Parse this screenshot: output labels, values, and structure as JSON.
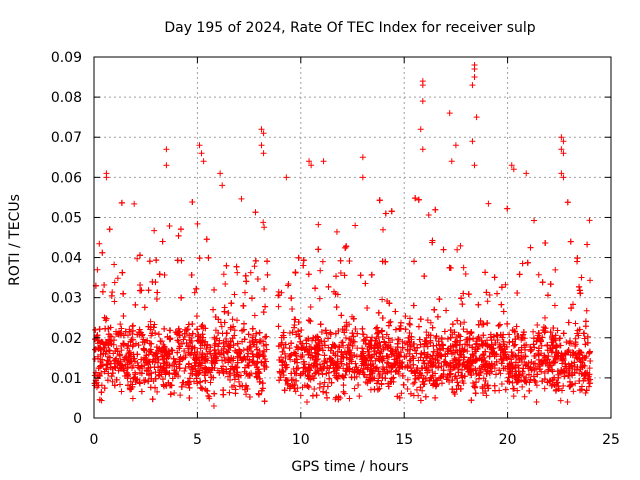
{
  "chart_data": {
    "type": "scatter",
    "title": "Day 195 of 2024, Rate Of TEC Index for receiver sulp",
    "xlabel": "GPS time / hours",
    "ylabel": "ROTI / TECUs",
    "xlim": [
      0,
      25
    ],
    "ylim": [
      0,
      0.09
    ],
    "x_ticks": [
      0,
      5,
      10,
      15,
      20,
      25
    ],
    "x_tick_labels": [
      "0",
      "5",
      "10",
      "15",
      "20",
      "25"
    ],
    "y_ticks": [
      0,
      0.01,
      0.02,
      0.03,
      0.04,
      0.05,
      0.06,
      0.07,
      0.08,
      0.09
    ],
    "y_tick_labels": [
      "0",
      "0.01",
      "0.02",
      "0.03",
      "0.04",
      "0.05",
      "0.06",
      "0.07",
      "0.08",
      "0.09"
    ],
    "grid": true,
    "marker": "+",
    "color": "#ff0000",
    "series": [
      {
        "name": "ROTI",
        "data_gaps_hours": [
          [
            8.4,
            8.9
          ]
        ],
        "notable_points": [
          {
            "x": 0.6,
            "y": 0.061
          },
          {
            "x": 0.6,
            "y": 0.06
          },
          {
            "x": 3.5,
            "y": 0.067
          },
          {
            "x": 3.5,
            "y": 0.063
          },
          {
            "x": 5.1,
            "y": 0.068
          },
          {
            "x": 5.2,
            "y": 0.066
          },
          {
            "x": 5.3,
            "y": 0.064
          },
          {
            "x": 6.1,
            "y": 0.061
          },
          {
            "x": 6.2,
            "y": 0.058
          },
          {
            "x": 8.1,
            "y": 0.072
          },
          {
            "x": 8.2,
            "y": 0.071
          },
          {
            "x": 8.1,
            "y": 0.068
          },
          {
            "x": 8.2,
            "y": 0.066
          },
          {
            "x": 9.3,
            "y": 0.06
          },
          {
            "x": 10.4,
            "y": 0.064
          },
          {
            "x": 10.5,
            "y": 0.063
          },
          {
            "x": 11.1,
            "y": 0.064
          },
          {
            "x": 13.0,
            "y": 0.065
          },
          {
            "x": 13.0,
            "y": 0.06
          },
          {
            "x": 15.9,
            "y": 0.084
          },
          {
            "x": 15.9,
            "y": 0.083
          },
          {
            "x": 15.9,
            "y": 0.079
          },
          {
            "x": 15.8,
            "y": 0.072
          },
          {
            "x": 15.9,
            "y": 0.067
          },
          {
            "x": 17.2,
            "y": 0.076
          },
          {
            "x": 17.5,
            "y": 0.068
          },
          {
            "x": 17.3,
            "y": 0.064
          },
          {
            "x": 18.4,
            "y": 0.088
          },
          {
            "x": 18.4,
            "y": 0.087
          },
          {
            "x": 18.4,
            "y": 0.085
          },
          {
            "x": 18.3,
            "y": 0.083
          },
          {
            "x": 18.5,
            "y": 0.075
          },
          {
            "x": 18.3,
            "y": 0.069
          },
          {
            "x": 18.4,
            "y": 0.063
          },
          {
            "x": 20.2,
            "y": 0.063
          },
          {
            "x": 20.3,
            "y": 0.062
          },
          {
            "x": 20.9,
            "y": 0.061
          },
          {
            "x": 22.6,
            "y": 0.07
          },
          {
            "x": 22.7,
            "y": 0.069
          },
          {
            "x": 22.6,
            "y": 0.067
          },
          {
            "x": 22.7,
            "y": 0.066
          },
          {
            "x": 22.6,
            "y": 0.061
          },
          {
            "x": 22.7,
            "y": 0.06
          },
          {
            "x": 5.8,
            "y": 0.003
          },
          {
            "x": 10.3,
            "y": 0.004
          },
          {
            "x": 11.9,
            "y": 0.005
          },
          {
            "x": 21.4,
            "y": 0.004
          },
          {
            "x": 22.9,
            "y": 0.004
          }
        ]
      }
    ]
  }
}
